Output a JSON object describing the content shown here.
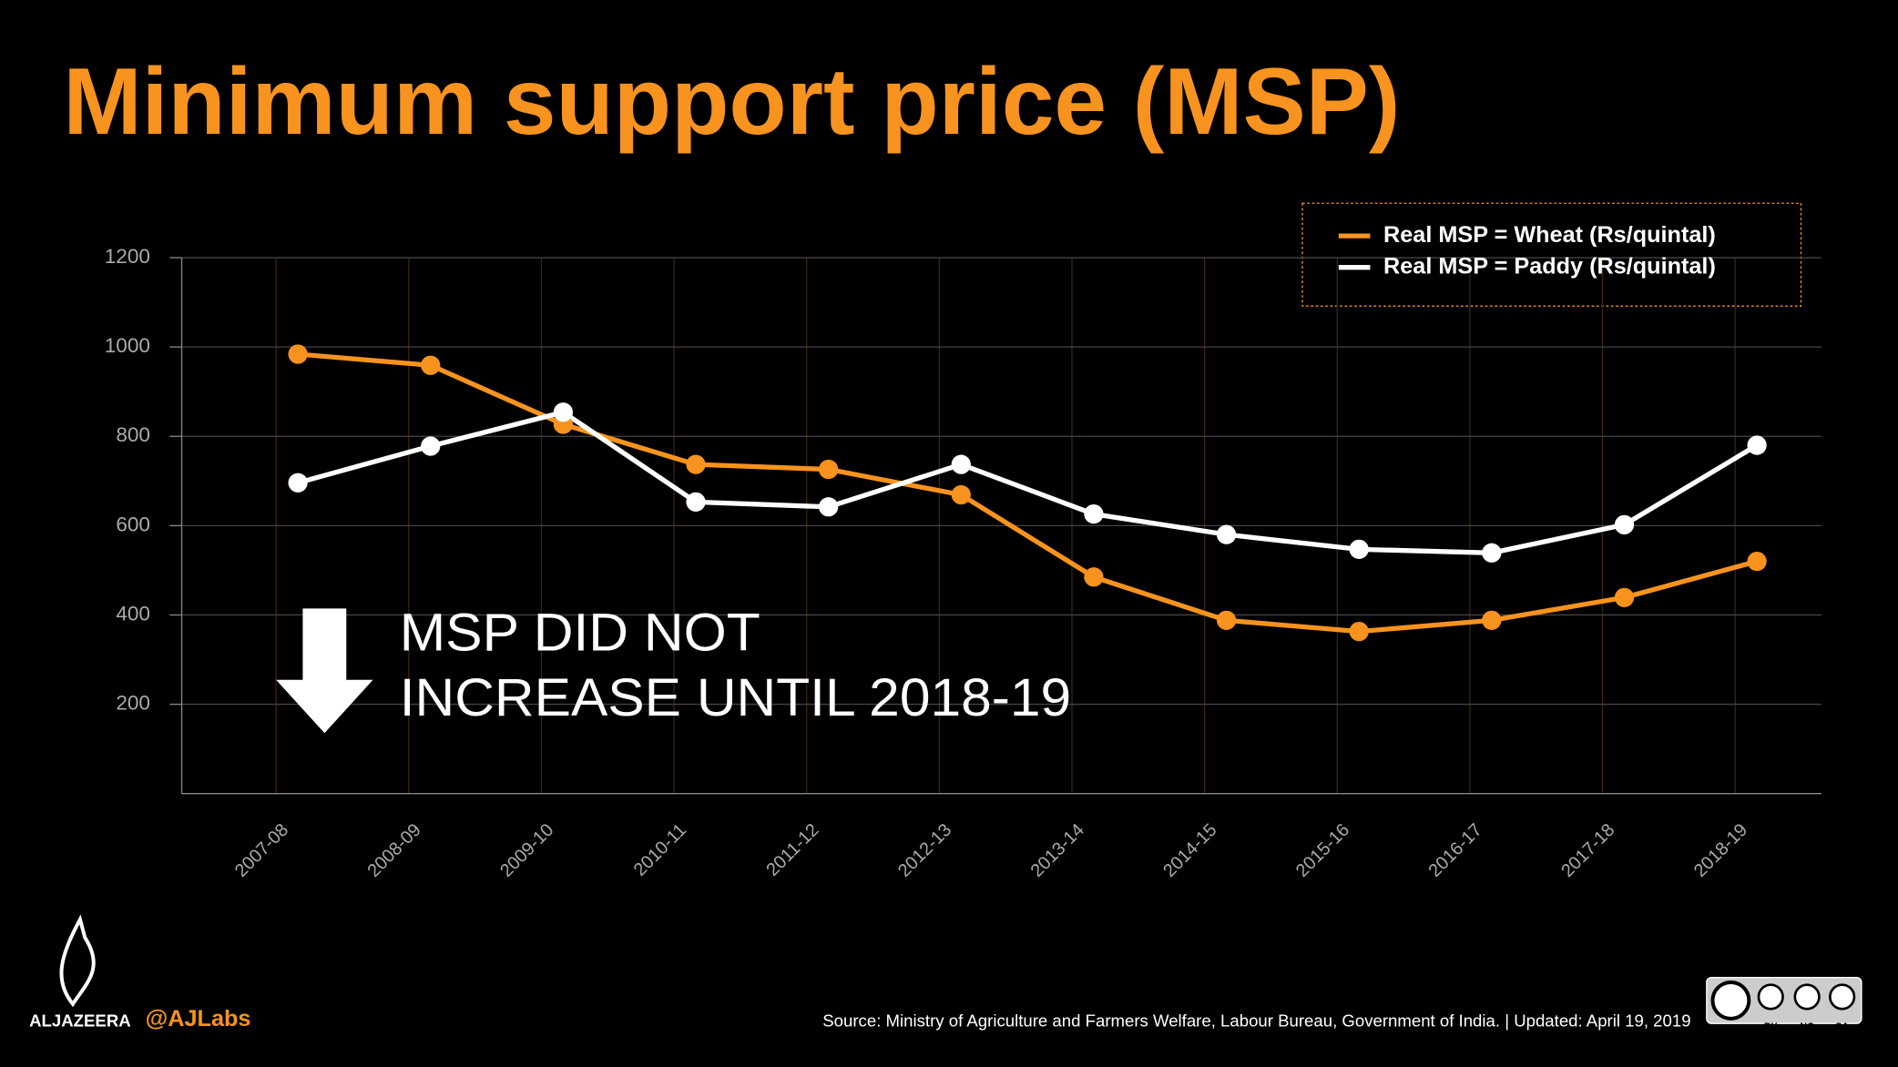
{
  "chart_data": {
    "type": "line",
    "title": "Minimum support price (MSP)",
    "categories": [
      "2007-08",
      "2008-09",
      "2009-10",
      "2010-11",
      "2011-12",
      "2012-13",
      "2013-14",
      "2014-15",
      "2015-16",
      "2016-17",
      "2017-18",
      "2018-19"
    ],
    "series": [
      {
        "name": "Real MSP = Wheat (Rs/quintal)",
        "color": "#f7931e",
        "values": [
          984,
          959,
          827,
          737,
          726,
          669,
          485,
          388,
          363,
          388,
          439,
          520
        ]
      },
      {
        "name": "Real MSP = Paddy (Rs/quintal)",
        "color": "#ffffff",
        "values": [
          696,
          778,
          854,
          653,
          642,
          737,
          626,
          580,
          547,
          539,
          602,
          780
        ]
      }
    ],
    "ylim": [
      0,
      1200
    ],
    "yticks": [
      200,
      400,
      600,
      800,
      1000,
      1200
    ],
    "grid": true,
    "annotation": [
      "MSP DID NOT",
      "INCREASE UNTIL 2018-19"
    ],
    "source": "Source: Ministry of Agriculture and Farmers Welfare, Labour Bureau, Government of India.  |  Updated: April 19, 2019",
    "brand": "ALJAZEERA",
    "handle": "@AJLabs",
    "license": [
      "BY",
      "NC",
      "SA"
    ]
  }
}
